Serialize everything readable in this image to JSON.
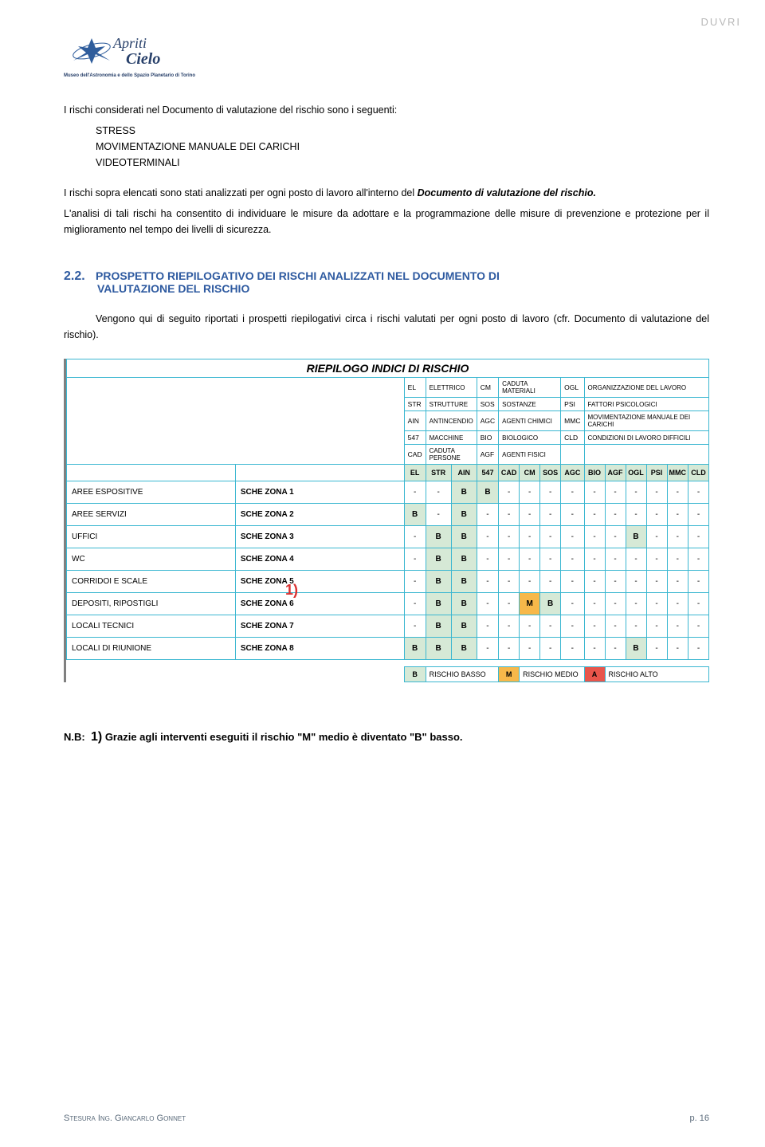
{
  "header_tag": "DUVRI",
  "logo": {
    "line1": "Apriti",
    "line2": "Cielo",
    "sub": "Museo dell'Astronomia e dello Spazio Planetario di Torino",
    "star_color": "#2f5d9c",
    "text_color": "#28406a"
  },
  "intro_para": "I rischi considerati nel Documento di valutazione del rischio sono i seguenti:",
  "risk_items": [
    "STRESS",
    "MOVIMENTAZIONE MANUALE DEI CARICHI",
    "VIDEOTERMINALI"
  ],
  "para2_a": "I rischi sopra elencati sono stati analizzati per ogni posto di lavoro all'interno del ",
  "para2_b": "Documento di valutazione del rischio.",
  "para3": "L'analisi di tali rischi ha consentito di individuare le misure da adottare e la programmazione delle misure di prevenzione e protezione per il miglioramento nel tempo dei livelli di sicurezza.",
  "section": {
    "num": "2.2.",
    "title_line1": "PROSPETTO RIEPILOGATIVO DEI RISCHI ANALIZZATI NEL DOCUMENTO DI",
    "title_line2": "VALUTAZIONE DEL RISCHIO"
  },
  "para4": "Vengono qui di seguito riportati i prospetti riepilogativi circa i rischi valutati per ogni posto di lavoro (cfr. Documento di valutazione del rischio).",
  "table": {
    "title": "RIEPILOGO INDICI DI RISCHIO",
    "abbrev": [
      [
        "EL",
        "ELETTRICO",
        "CM",
        "CADUTA MATERIALI",
        "OGL",
        "ORGANIZZAZIONE DEL LAVORO"
      ],
      [
        "STR",
        "STRUTTURE",
        "SOS",
        "SOSTANZE",
        "PSI",
        "FATTORI PSICOLOGICI"
      ],
      [
        "AIN",
        "ANTINCENDIO",
        "AGC",
        "AGENTI CHIMICI",
        "MMC",
        "MOVIMENTAZIONE MANUALE DEI CARICHI"
      ],
      [
        "547",
        "MACCHINE",
        "BIO",
        "BIOLOGICO",
        "CLD",
        "CONDIZIONI DI LAVORO DIFFICILI"
      ],
      [
        "CAD",
        "CADUTA PERSONE",
        "AGF",
        "AGENTI FISICI",
        "",
        ""
      ]
    ],
    "headers": [
      "EL",
      "STR",
      "AIN",
      "547",
      "CAD",
      "CM",
      "SOS",
      "AGC",
      "BIO",
      "AGF",
      "OGL",
      "PSI",
      "MMC",
      "CLD"
    ],
    "rows": [
      {
        "area": "AREE ESPOSITIVE",
        "zone": "SCHE ZONA 1",
        "vals": [
          "-",
          "-",
          "B",
          "B",
          "-",
          "-",
          "-",
          "-",
          "-",
          "-",
          "-",
          "-",
          "-",
          "-"
        ]
      },
      {
        "area": "AREE SERVIZI",
        "zone": "SCHE ZONA 2",
        "vals": [
          "B",
          "-",
          "B",
          "-",
          "-",
          "-",
          "-",
          "-",
          "-",
          "-",
          "-",
          "-",
          "-",
          "-"
        ]
      },
      {
        "area": "UFFICI",
        "zone": "SCHE ZONA 3",
        "vals": [
          "-",
          "B",
          "B",
          "-",
          "-",
          "-",
          "-",
          "-",
          "-",
          "-",
          "B",
          "-",
          "-",
          "-"
        ]
      },
      {
        "area": "WC",
        "zone": "SCHE ZONA 4",
        "vals": [
          "-",
          "B",
          "B",
          "-",
          "-",
          "-",
          "-",
          "-",
          "-",
          "-",
          "-",
          "-",
          "-",
          "-"
        ]
      },
      {
        "area": "CORRIDOI E SCALE",
        "zone": "SCHE ZONA 5",
        "vals": [
          "-",
          "B",
          "B",
          "-",
          "-",
          "-",
          "-",
          "-",
          "-",
          "-",
          "-",
          "-",
          "-",
          "-"
        ]
      },
      {
        "area": "DEPOSITI, RIPOSTIGLI",
        "zone": "SCHE ZONA 6",
        "vals": [
          "-",
          "B",
          "B",
          "-",
          "-",
          "M",
          "B",
          "-",
          "-",
          "-",
          "-",
          "-",
          "-",
          "-"
        ]
      },
      {
        "area": "LOCALI TECNICI",
        "zone": "SCHE ZONA 7",
        "vals": [
          "-",
          "B",
          "B",
          "-",
          "-",
          "-",
          "-",
          "-",
          "-",
          "-",
          "-",
          "-",
          "-",
          "-"
        ]
      },
      {
        "area": "LOCALI DI RIUNIONE",
        "zone": "SCHE ZONA 8",
        "vals": [
          "B",
          "B",
          "B",
          "-",
          "-",
          "-",
          "-",
          "-",
          "-",
          "-",
          "B",
          "-",
          "-",
          "-"
        ]
      }
    ],
    "annotation": "1)",
    "legend": [
      {
        "code": "B",
        "class": "legend-b",
        "text": "RISCHIO BASSO"
      },
      {
        "code": "M",
        "class": "legend-m",
        "text": "RISCHIO MEDIO"
      },
      {
        "code": "A",
        "class": "legend-a",
        "text": "RISCHIO ALTO"
      }
    ]
  },
  "note": {
    "prefix": "N.B:",
    "num": "1)",
    "text": " Grazie agli interventi eseguiti il rischio \"M\" medio è diventato \"B\" basso."
  },
  "footer": {
    "left": "Stesura Ing. Giancarlo Gonnet",
    "right": "p. 16"
  }
}
